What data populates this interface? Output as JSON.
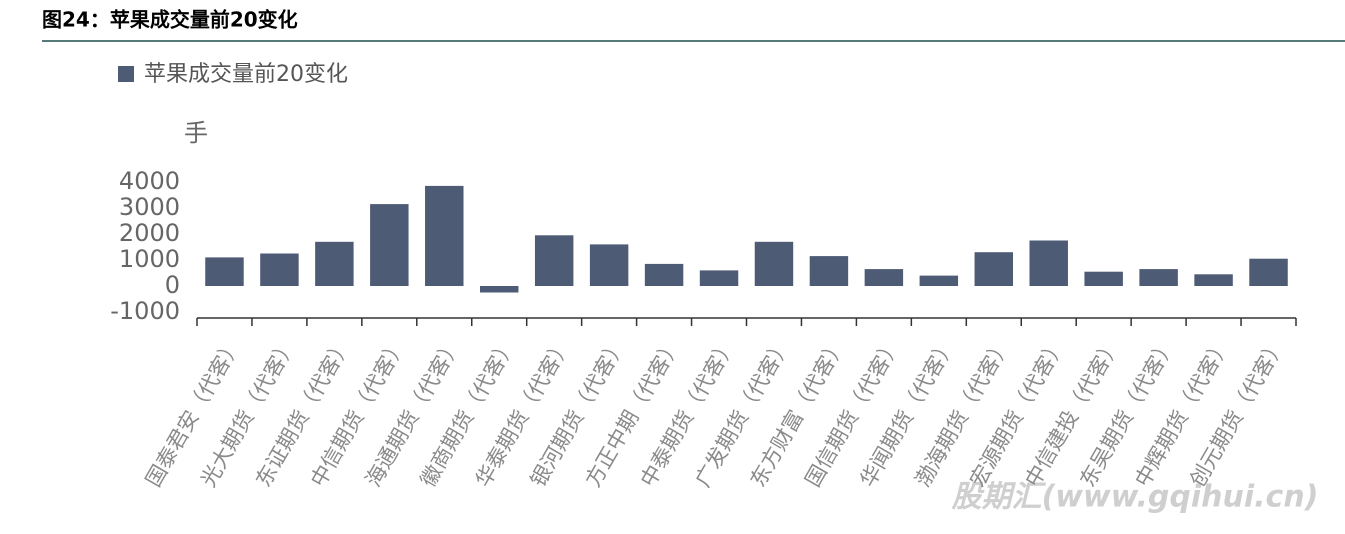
{
  "chart_data": {
    "type": "bar",
    "title": "图24：苹果成交量前20变化",
    "legend_label": "苹果成交量前20变化",
    "y_axis_label": "手",
    "watermark": "股期汇(www.gqihui.cn)",
    "categories": [
      "国泰君安（代客）",
      "光大期货（代客）",
      "东证期货（代客）",
      "中信期货（代客）",
      "海通期货（代客）",
      "徽商期货（代客）",
      "华泰期货（代客）",
      "银河期货（代客）",
      "方正中期（代客）",
      "中泰期货（代客）",
      "广发期货（代客）",
      "东方财富（代客）",
      "国信期货（代客）",
      "华闻期货（代客）",
      "渤海期货（代客）",
      "宏源期货（代客）",
      "中信建投（代客）",
      "东吴期货（代客）",
      "中辉期货（代客）",
      "创元期货（代客）"
    ],
    "values": [
      1100,
      1250,
      1700,
      3150,
      3850,
      -250,
      1950,
      1600,
      850,
      600,
      1700,
      1150,
      650,
      400,
      1300,
      1750,
      550,
      650,
      450,
      1050
    ],
    "color": "#4e5b75",
    "ylim": [
      -1000,
      4000
    ],
    "yticks": [
      -1000,
      0,
      1000,
      2000,
      3000,
      4000
    ],
    "grid": false
  }
}
